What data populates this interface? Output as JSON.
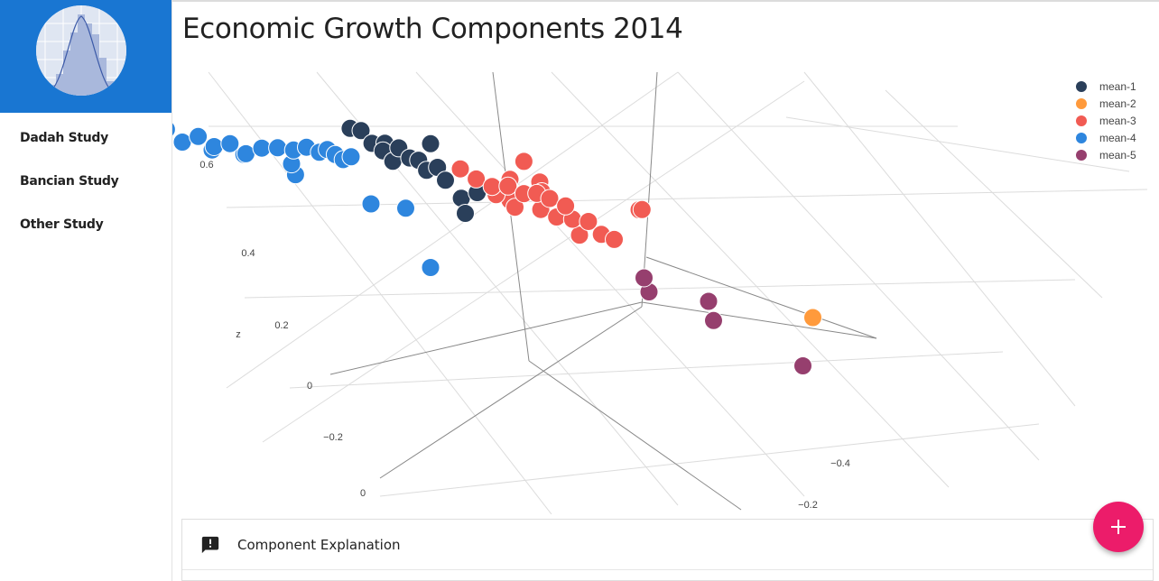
{
  "nav": {
    "items": [
      {
        "label": "Dadah Study"
      },
      {
        "label": "Bancian Study"
      },
      {
        "label": "Other Study"
      }
    ]
  },
  "page": {
    "title": "Economic Growth Components 2014"
  },
  "panel": {
    "title": "Component Explanation",
    "icon": "alert-message-icon"
  },
  "fab": {
    "icon": "plus-icon"
  },
  "colors": {
    "sidebar_header": "#1976d2",
    "fab": "#ec1c6a"
  },
  "chart_data": {
    "type": "scatter3d",
    "zlabel": "z",
    "z_ticks": [
      "0.6",
      "0.4",
      "0.2",
      "0",
      "−0.2"
    ],
    "x_ticks": [
      "0"
    ],
    "y_ticks": [
      "−0.4",
      "−0.2"
    ],
    "grid": true,
    "legend_position": "top-right",
    "series": [
      {
        "name": "mean-1",
        "color": "#2a3f5a",
        "points": [
          [
            -0.015,
            -0.52,
            0.27
          ],
          [
            -0.01,
            -0.5,
            0.28
          ],
          [
            -0.005,
            -0.48,
            0.25
          ],
          [
            0,
            -0.46,
            0.24
          ],
          [
            0.005,
            -0.47,
            0.26
          ],
          [
            0.01,
            -0.44,
            0.27
          ],
          [
            0.015,
            -0.42,
            0.25
          ],
          [
            0.018,
            -0.4,
            0.26
          ],
          [
            0.02,
            -0.38,
            0.24
          ],
          [
            0.025,
            -0.36,
            0.27
          ],
          [
            0.03,
            -0.35,
            0.23
          ],
          [
            0.04,
            -0.33,
            0.18
          ],
          [
            0.05,
            -0.31,
            0.22
          ],
          [
            0.035,
            -0.3,
            0.15
          ],
          [
            0.06,
            -0.5,
            0.23
          ],
          [
            0.01,
            -0.46,
            0.2
          ]
        ]
      },
      {
        "name": "mean-2",
        "color": "#ff9a3c",
        "points": [
          [
            0.16,
            0.45,
            0.45
          ]
        ]
      },
      {
        "name": "mean-3",
        "color": "#f15b53",
        "points": [
          [
            0.03,
            -0.3,
            0.32
          ],
          [
            0.04,
            -0.28,
            0.3
          ],
          [
            0.05,
            -0.26,
            0.29
          ],
          [
            0.06,
            -0.24,
            0.31
          ],
          [
            0.07,
            -0.22,
            0.3
          ],
          [
            0.08,
            -0.21,
            0.31
          ],
          [
            0.09,
            -0.2,
            0.3
          ],
          [
            0.1,
            -0.18,
            0.29
          ],
          [
            0.08,
            -0.3,
            0.28
          ],
          [
            0.1,
            -0.26,
            0.27
          ],
          [
            0.06,
            -0.28,
            0.24
          ],
          [
            0.07,
            -0.25,
            0.22
          ],
          [
            0.09,
            -0.23,
            0.23
          ],
          [
            0.1,
            -0.21,
            0.22
          ],
          [
            0.11,
            -0.19,
            0.23
          ],
          [
            0.12,
            -0.17,
            0.24
          ],
          [
            0.13,
            -0.16,
            0.2
          ],
          [
            0.14,
            -0.15,
            0.19
          ],
          [
            0.15,
            -0.1,
            0.35
          ],
          [
            0.15,
            -0.09,
            0.36
          ],
          [
            0.08,
            -0.3,
            0.2
          ],
          [
            0.12,
            -0.2,
            0.16
          ],
          [
            0.1,
            -0.32,
            0.33
          ],
          [
            0.11,
            -0.3,
            0.27
          ]
        ]
      },
      {
        "name": "mean-4",
        "color": "#2e86de",
        "points": [
          [
            -0.15,
            -0.75,
            0.06
          ],
          [
            -0.14,
            -0.72,
            0.08
          ],
          [
            -0.13,
            -0.7,
            0.05
          ],
          [
            -0.12,
            -0.68,
            0.09
          ],
          [
            -0.11,
            -0.66,
            0.07
          ],
          [
            -0.1,
            -0.64,
            0.1
          ],
          [
            -0.09,
            -0.62,
            0.08
          ],
          [
            -0.08,
            -0.6,
            0.12
          ],
          [
            -0.07,
            -0.58,
            0.14
          ],
          [
            -0.06,
            -0.56,
            0.15
          ],
          [
            -0.05,
            -0.55,
            0.17
          ],
          [
            -0.04,
            -0.54,
            0.16
          ],
          [
            -0.035,
            -0.53,
            0.18
          ],
          [
            -0.03,
            -0.52,
            0.17
          ],
          [
            -0.025,
            -0.51,
            0.16
          ],
          [
            -0.02,
            -0.5,
            0.18
          ],
          [
            -0.1,
            -0.7,
            0.02
          ],
          [
            -0.08,
            -0.66,
            0.04
          ],
          [
            -0.05,
            -0.6,
            0.06
          ],
          [
            -0.04,
            -0.62,
            0.0
          ],
          [
            0.0,
            -0.5,
            0.0
          ],
          [
            0.02,
            -0.45,
            0.03
          ],
          [
            0.03,
            -0.4,
            -0.15
          ],
          [
            -0.12,
            -0.8,
            0.0
          ]
        ]
      },
      {
        "name": "mean-5",
        "color": "#963f6e",
        "points": [
          [
            0.22,
            -0.1,
            0.0
          ],
          [
            0.2,
            -0.25,
            -0.05
          ],
          [
            0.24,
            -0.15,
            -0.12
          ],
          [
            0.22,
            -0.3,
            -0.15
          ],
          [
            0.3,
            -0.05,
            -0.2
          ]
        ]
      }
    ]
  }
}
